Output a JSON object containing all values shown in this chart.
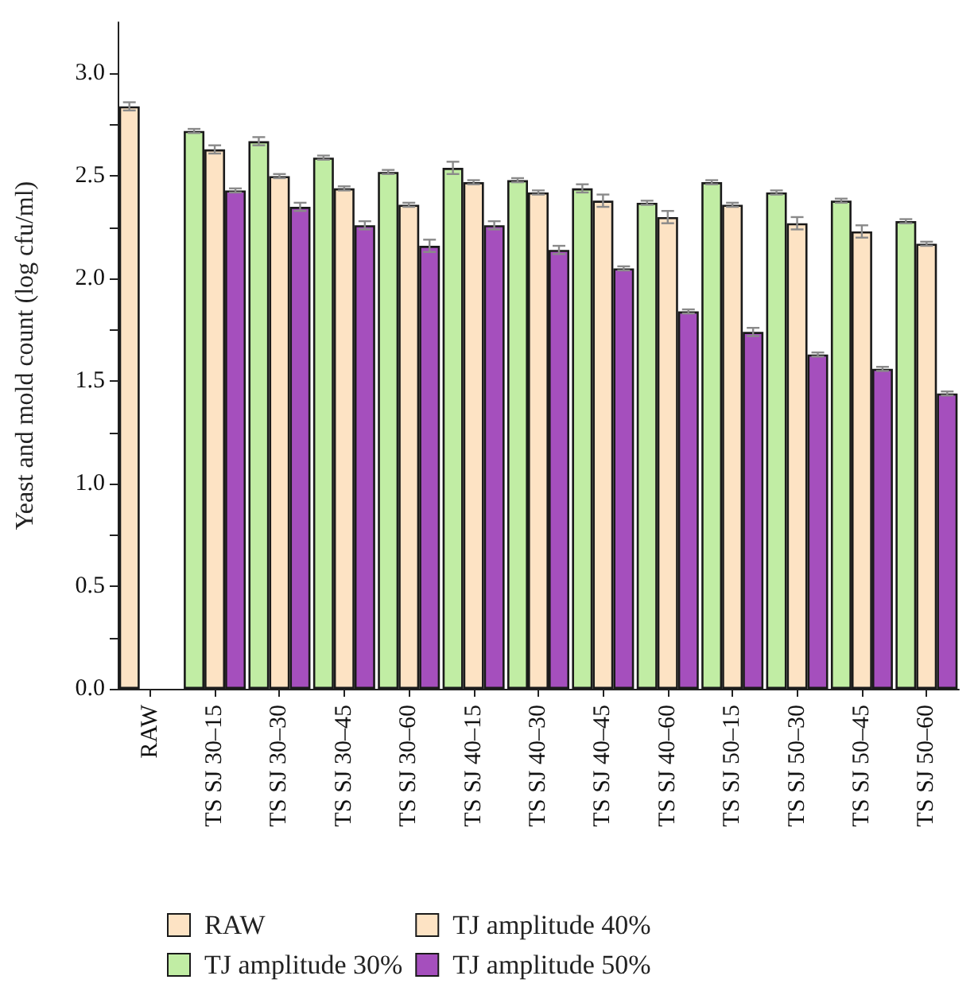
{
  "chart_data": {
    "type": "bar",
    "ylabel": "Yeast and mold count (log cfu/ml)",
    "categories": [
      "RAW",
      "TS SJ 30–15",
      "TS SJ 30–30",
      "TS SJ 30–45",
      "TS SJ 30–60",
      "TS SJ 40–15",
      "TS SJ 40–30",
      "TS SJ 40–45",
      "TS SJ 40–60",
      "TS SJ 50–15",
      "TS SJ 50–30",
      "TS SJ 50–45",
      "TS SJ 50–60"
    ],
    "series": [
      {
        "name": "RAW",
        "color": "#fde3c4",
        "values": [
          2.84,
          null,
          null,
          null,
          null,
          null,
          null,
          null,
          null,
          null,
          null,
          null,
          null
        ],
        "errors": [
          0.02,
          null,
          null,
          null,
          null,
          null,
          null,
          null,
          null,
          null,
          null,
          null,
          null
        ]
      },
      {
        "name": "TJ amplitude 30%",
        "color": "#c1eda4",
        "values": [
          null,
          2.72,
          2.67,
          2.59,
          2.52,
          2.54,
          2.48,
          2.44,
          2.37,
          2.47,
          2.42,
          2.38,
          2.28
        ],
        "errors": [
          null,
          0.01,
          0.02,
          0.01,
          0.01,
          0.03,
          0.01,
          0.02,
          0.01,
          0.01,
          0.01,
          0.01,
          0.01
        ]
      },
      {
        "name": "TJ amplitude 40%",
        "color": "#fde3c4",
        "values": [
          null,
          2.63,
          2.5,
          2.44,
          2.36,
          2.47,
          2.42,
          2.38,
          2.3,
          2.36,
          2.27,
          2.23,
          2.17
        ],
        "errors": [
          null,
          0.02,
          0.01,
          0.01,
          0.01,
          0.01,
          0.01,
          0.03,
          0.03,
          0.01,
          0.03,
          0.03,
          0.01
        ]
      },
      {
        "name": "TJ amplitude 50%",
        "color": "#a54fbd",
        "values": [
          null,
          2.43,
          2.35,
          2.26,
          2.16,
          2.26,
          2.14,
          2.05,
          1.84,
          1.74,
          1.63,
          1.56,
          1.44
        ],
        "errors": [
          null,
          0.01,
          0.02,
          0.02,
          0.03,
          0.02,
          0.02,
          0.01,
          0.01,
          0.02,
          0.01,
          0.01,
          0.01
        ]
      }
    ],
    "ylim": [
      0,
      3.25
    ],
    "yticks": [
      {
        "value": 0,
        "label": "0.0"
      },
      {
        "value": 0.25,
        "label": null
      },
      {
        "value": 0.5,
        "label": "0.5"
      },
      {
        "value": 0.75,
        "label": null
      },
      {
        "value": 1,
        "label": "1.0"
      },
      {
        "value": 1.25,
        "label": null
      },
      {
        "value": 1.5,
        "label": "1.5"
      },
      {
        "value": 1.75,
        "label": null
      },
      {
        "value": 2,
        "label": "2.0"
      },
      {
        "value": 2.25,
        "label": null
      },
      {
        "value": 2.5,
        "label": "2.5"
      },
      {
        "value": 2.75,
        "label": null
      },
      {
        "value": 3,
        "label": "3.0"
      }
    ],
    "grid": false,
    "legend": "bottom"
  }
}
